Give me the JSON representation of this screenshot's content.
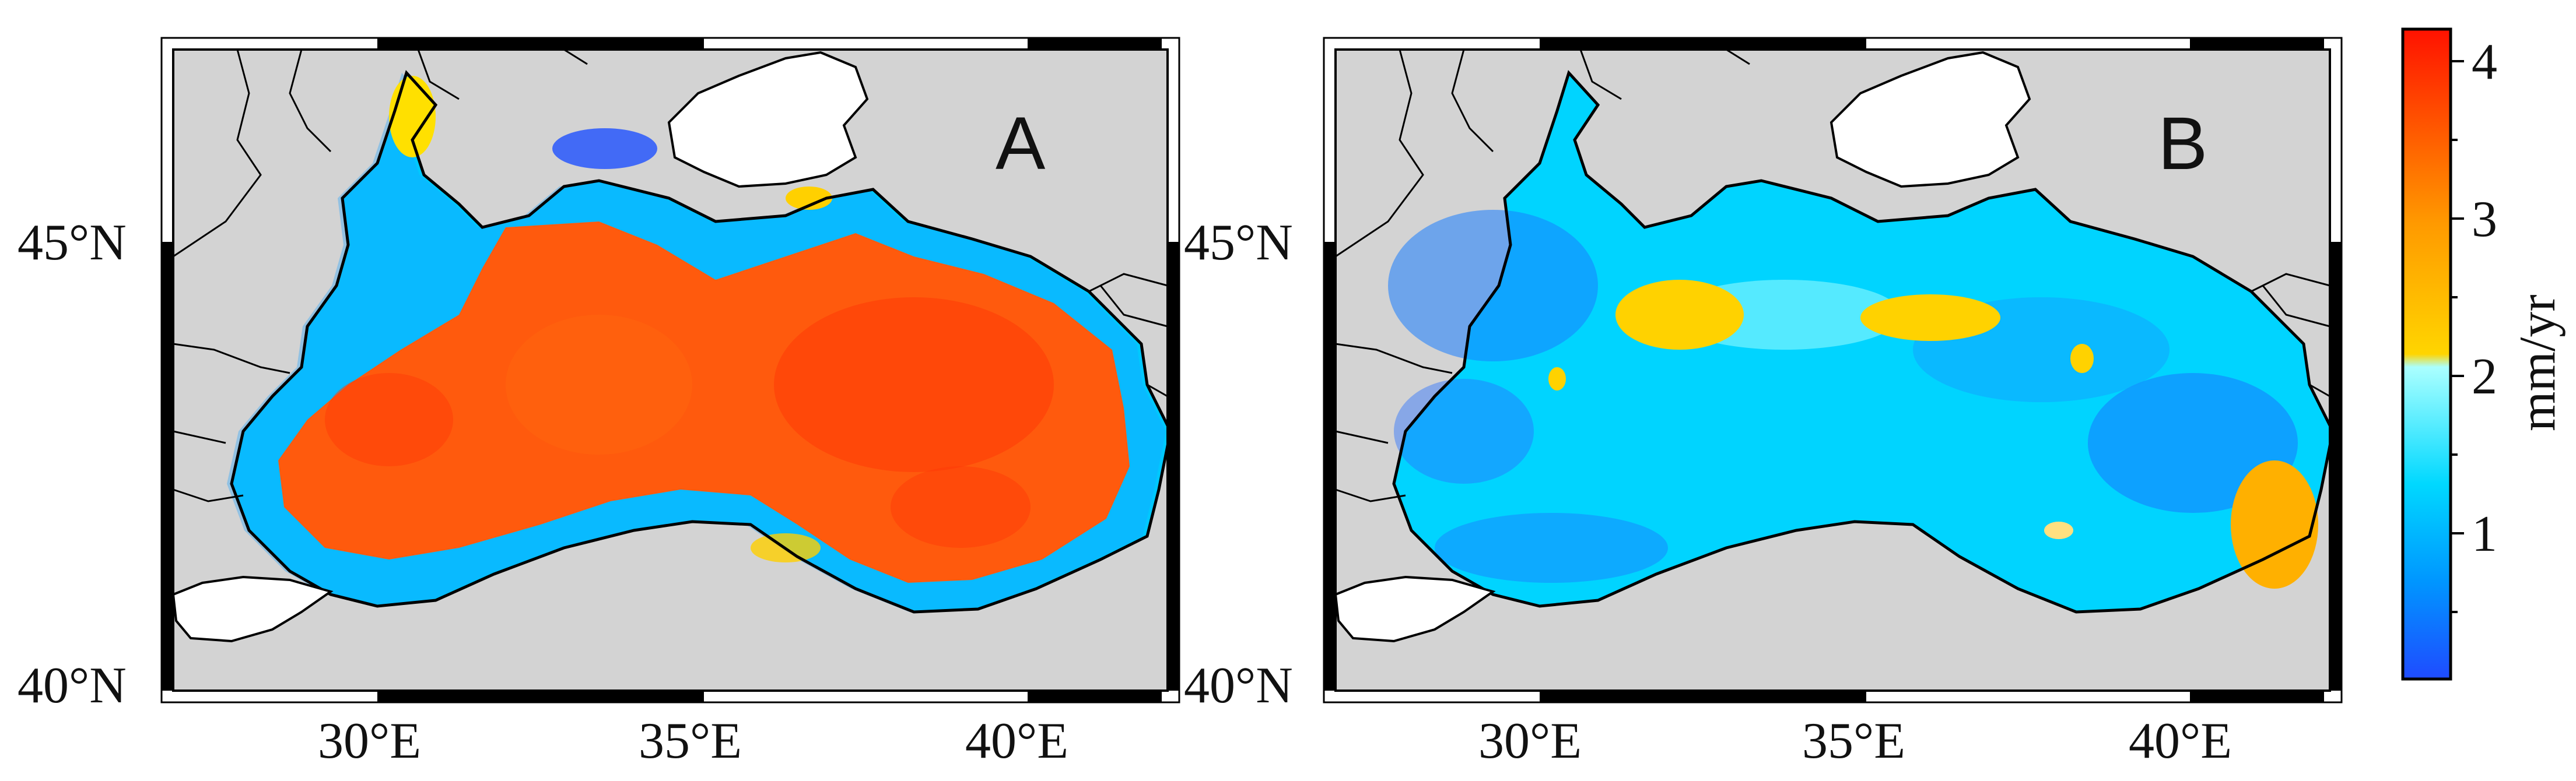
{
  "panels": [
    {
      "id": "A",
      "label": "A",
      "rate_level": "high",
      "fill_color": "#ff4a05"
    },
    {
      "id": "B",
      "label": "B",
      "rate_level": "low",
      "fill_color": "#00c8ff"
    }
  ],
  "axes": {
    "lat_labels": [
      "45°N",
      "40°N"
    ],
    "lon_labels": [
      "30°E",
      "35°E",
      "40°E"
    ]
  },
  "colorbar": {
    "unit": "mm/yr",
    "ticks": [
      "4",
      "3",
      "2",
      "1"
    ],
    "range": [
      0.1,
      4.2
    ],
    "colors": [
      "#1e50ff",
      "#00d2ff",
      "#a8ffff",
      "#ffd000",
      "#ff8000",
      "#ff1a00"
    ]
  },
  "colors": {
    "land": "#d3d3d3",
    "sea_border": "#000000",
    "land_outline": "#000000"
  }
}
